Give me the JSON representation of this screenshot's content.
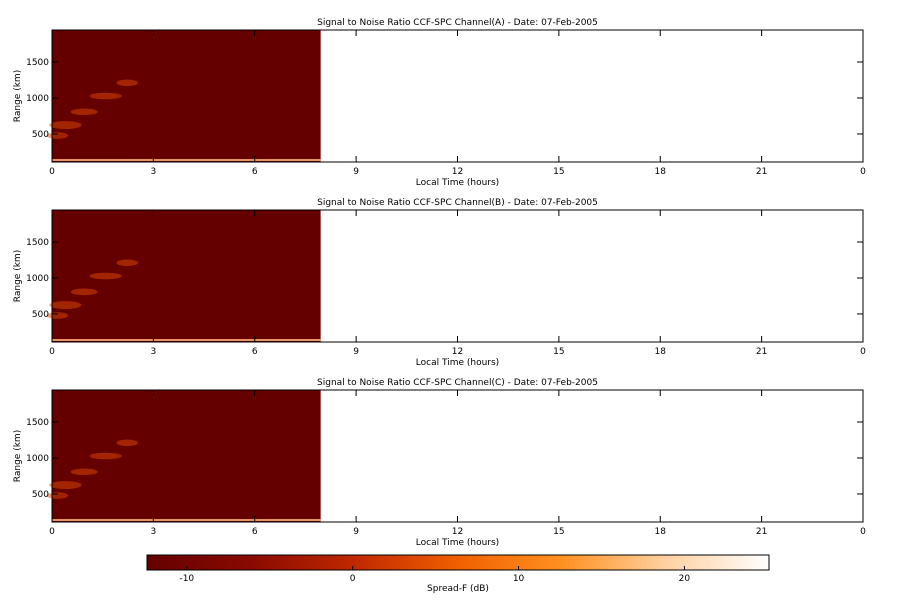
{
  "chart_data": [
    {
      "type": "heatmap",
      "title": "Signal to Noise Ratio CCF-SPC Channel(A) - Date: 07-Feb-2005",
      "xlabel": "Local Time (hours)",
      "ylabel": "Range (km)",
      "xlim": [
        0,
        24
      ],
      "xticks": [
        0,
        3,
        6,
        9,
        12,
        15,
        18,
        21,
        {
          "value": 24,
          "label": "0"
        }
      ],
      "ylim": [
        110,
        1945
      ],
      "yticks": [
        500,
        1000,
        1500
      ],
      "data_extent": [
        0,
        7.95
      ]
    },
    {
      "type": "heatmap",
      "title": "Signal to Noise Ratio CCF-SPC Channel(B) - Date: 07-Feb-2005",
      "xlabel": "Local Time (hours)",
      "ylabel": "Range (km)",
      "xlim": [
        0,
        24
      ],
      "xticks": [
        0,
        3,
        6,
        9,
        12,
        15,
        18,
        21,
        {
          "value": 24,
          "label": "0"
        }
      ],
      "ylim": [
        110,
        1945
      ],
      "yticks": [
        500,
        1000,
        1500
      ],
      "data_extent": [
        0,
        7.95
      ]
    },
    {
      "type": "heatmap",
      "title": "Signal to Noise Ratio CCF-SPC Channel(C) - Date: 07-Feb-2005",
      "xlabel": "Local Time (hours)",
      "ylabel": "Range (km)",
      "xlim": [
        0,
        24
      ],
      "xticks": [
        0,
        3,
        6,
        9,
        12,
        15,
        18,
        21,
        {
          "value": 24,
          "label": "0"
        }
      ],
      "ylim": [
        110,
        1945
      ],
      "yticks": [
        500,
        1000,
        1500
      ],
      "data_extent": [
        0,
        7.95
      ]
    }
  ],
  "colorbar": {
    "label": "Spread-F (dB)",
    "clim": [
      -12.4,
      25.1
    ],
    "ticks": [
      -10,
      0,
      10,
      20
    ],
    "colormap": [
      "#650000",
      "#8a0a00",
      "#c02800",
      "#f06000",
      "#ff9020",
      "#ffd0a0",
      "#ffffff"
    ]
  }
}
